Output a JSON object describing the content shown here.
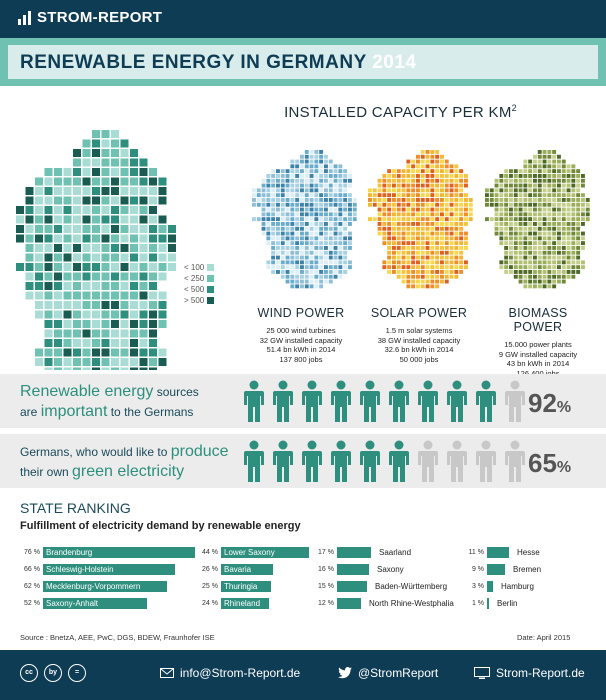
{
  "header": {
    "brand": "STROM-REPORT"
  },
  "title": {
    "main": "RENEWABLE ENERGY IN GERMANY",
    "year": "2014"
  },
  "capacity": {
    "title": "INSTALLED CAPACITY PER KM",
    "superscript": "2"
  },
  "legend": [
    {
      "label": "< 100",
      "color": "#a8dcd4"
    },
    {
      "label": "< 250",
      "color": "#6fc2b1"
    },
    {
      "label": "< 500",
      "color": "#2e8f7e"
    },
    {
      "label": "> 500",
      "color": "#1a5c52"
    }
  ],
  "technologies": [
    {
      "name": "WIND POWER",
      "lines": [
        "25 000 wind turbines",
        "32 GW installed capacity",
        "51.4 bn kWh in 2014",
        "137 800 jobs"
      ],
      "colors": [
        "#dceef5",
        "#a8d2e3",
        "#6aaccb",
        "#3d82a8",
        "#8fbfd6"
      ]
    },
    {
      "name": "SOLAR POWER",
      "lines": [
        "1.5 m solar systems",
        "38 GW installed capacity",
        "32.6 bn kWh in 2014",
        "50 000 jobs"
      ],
      "colors": [
        "#f7d84a",
        "#f2b632",
        "#ec8f2a",
        "#e0611f",
        "#f4c43e"
      ]
    },
    {
      "name": "BIOMASS POWER",
      "lines": [
        "15.000 power plants",
        "9 GW installed capacity",
        "43 bn kWh in 2014",
        "126 400 jobs"
      ],
      "colors": [
        "#c3cf8a",
        "#9aae5a",
        "#71883a",
        "#4e6a26",
        "#b2c073"
      ]
    }
  ],
  "opinions": [
    {
      "text_a": "Renewable energy",
      "text_b": " sources",
      "text_c": "are ",
      "text_d": "important",
      "text_e": " to the Germans",
      "filled": 9,
      "total": 10,
      "percent": "92",
      "percent_sign": "%"
    },
    {
      "text_a": "Germans, who would like to ",
      "text_b": "produce",
      "text_c": "their own ",
      "text_d": "green electricity",
      "text_e": "",
      "filled": 6,
      "total": 10,
      "percent": "65",
      "percent_sign": "%"
    }
  ],
  "ranking": {
    "title": "STATE RANKING",
    "subtitle": "Fulfillment of electricity demand by renewable energy",
    "states": [
      {
        "pct": "76 %",
        "value": 76,
        "name": "Brandenburg"
      },
      {
        "pct": "66 %",
        "value": 66,
        "name": "Schleswig-Holstein"
      },
      {
        "pct": "62 %",
        "value": 62,
        "name": "Mecklenburg-Vorpommern"
      },
      {
        "pct": "52 %",
        "value": 52,
        "name": "Saxony-Anhalt"
      },
      {
        "pct": "44 %",
        "value": 44,
        "name": "Lower Saxony"
      },
      {
        "pct": "26 %",
        "value": 26,
        "name": "Bavaria"
      },
      {
        "pct": "25 %",
        "value": 25,
        "name": "Thuringia"
      },
      {
        "pct": "24 %",
        "value": 24,
        "name": "Rhineland"
      },
      {
        "pct": "17 %",
        "value": 17,
        "name": "Saarland"
      },
      {
        "pct": "16 %",
        "value": 16,
        "name": "Saxony"
      },
      {
        "pct": "15 %",
        "value": 15,
        "name": "Baden-Württemberg"
      },
      {
        "pct": "12 %",
        "value": 12,
        "name": "North Rhine-Westphalia"
      },
      {
        "pct": "11 %",
        "value": 11,
        "name": "Hesse"
      },
      {
        "pct": "9 %",
        "value": 9,
        "name": "Bremen"
      },
      {
        "pct": "3 %",
        "value": 3,
        "name": "Hamburg"
      },
      {
        "pct": "1 %",
        "value": 1,
        "name": "Berlin"
      }
    ]
  },
  "source": "Source : BnetzA, AEE, PwC, DGS, BDEW, Fraunhofer ISE",
  "date": "Date: April 2015",
  "footer": {
    "license_icons": [
      "cc",
      "by",
      "="
    ],
    "email": "info@Strom-Report.de",
    "twitter": "@StromReport",
    "website": "Strom-Report.de"
  },
  "colors": {
    "navy": "#0f3c55",
    "teal": "#6fc2b1",
    "dark_teal": "#2e8f7e",
    "grey_person": "#c8c8c8"
  }
}
